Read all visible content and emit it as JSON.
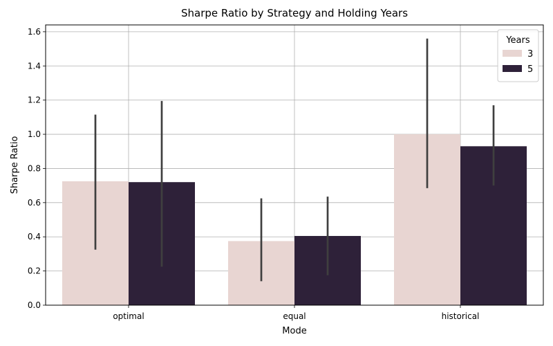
{
  "chart_data": {
    "type": "bar",
    "title": "Sharpe Ratio by Strategy and Holding Years",
    "xlabel": "Mode",
    "ylabel": "Sharpe Ratio",
    "categories": [
      "optimal",
      "equal",
      "historical"
    ],
    "ylim": [
      0,
      1.64
    ],
    "yticks": [
      0.0,
      0.2,
      0.4,
      0.6,
      0.8,
      1.0,
      1.2,
      1.4,
      1.6
    ],
    "ytick_labels": [
      "0.0",
      "0.2",
      "0.4",
      "0.6",
      "0.8",
      "1.0",
      "1.2",
      "1.4",
      "1.6"
    ],
    "grid": true,
    "legend": {
      "title": "Years",
      "placement": "top-right"
    },
    "series": [
      {
        "name": "3",
        "color": "#e8d5d2",
        "values": [
          0.725,
          0.375,
          1.0
        ],
        "err_low": [
          0.325,
          0.14,
          0.685
        ],
        "err_high": [
          1.115,
          0.625,
          1.56
        ]
      },
      {
        "name": "5",
        "color": "#2e2139",
        "values": [
          0.72,
          0.405,
          0.93
        ],
        "err_low": [
          0.225,
          0.175,
          0.7
        ],
        "err_high": [
          1.195,
          0.635,
          1.17
        ]
      }
    ],
    "errorbar_color": "#3f3f3f"
  }
}
